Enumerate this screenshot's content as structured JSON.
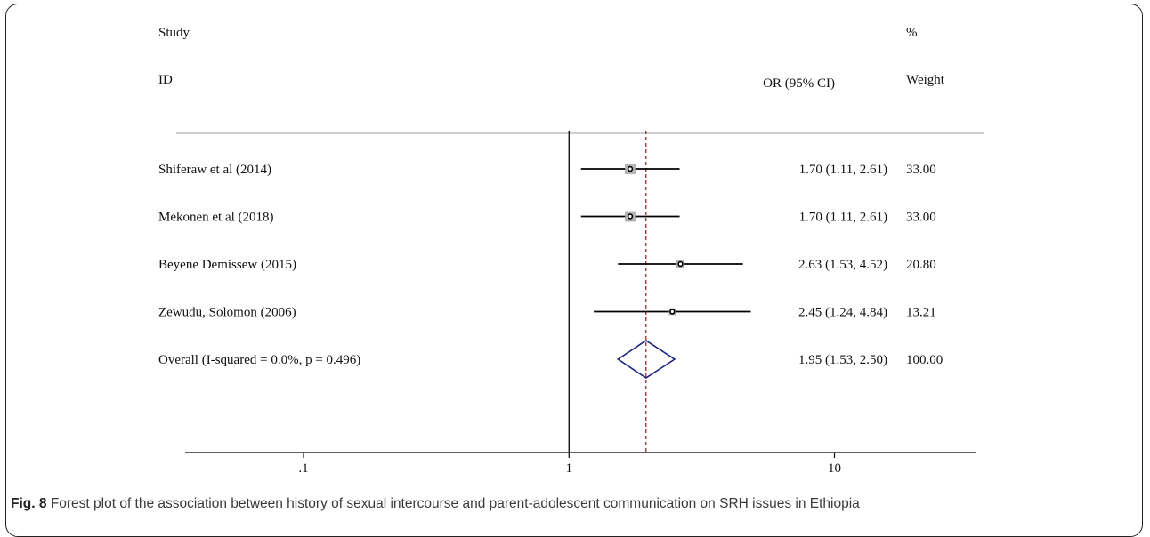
{
  "chart_data": {
    "type": "forest",
    "headers": {
      "study_top": "Study",
      "study_bottom": "ID",
      "effect": "OR (95% CI)",
      "weight_top": "%",
      "weight_bottom": "Weight"
    },
    "x_scale": "log",
    "xlim": [
      0.0358,
      34
    ],
    "x_ticks": [
      {
        "value": 0.1,
        "label": ".1"
      },
      {
        "value": 1,
        "label": "1"
      },
      {
        "value": 10,
        "label": "10"
      }
    ],
    "null_line": 1,
    "pooled_line": 1.95,
    "studies": [
      {
        "label": "Shiferaw et al (2014)",
        "or": 1.7,
        "lo": 1.11,
        "hi": 2.61,
        "ci_text": "1.70 (1.11, 2.61)",
        "weight": "33.00"
      },
      {
        "label": "Mekonen et al (2018)",
        "or": 1.7,
        "lo": 1.11,
        "hi": 2.61,
        "ci_text": "1.70 (1.11, 2.61)",
        "weight": "33.00"
      },
      {
        "label": "Beyene Demissew (2015)",
        "or": 2.63,
        "lo": 1.53,
        "hi": 4.52,
        "ci_text": "2.63 (1.53, 4.52)",
        "weight": "20.80"
      },
      {
        "label": "Zewudu, Solomon (2006)",
        "or": 2.45,
        "lo": 1.24,
        "hi": 4.84,
        "ci_text": "2.45 (1.24, 4.84)",
        "weight": "13.21"
      }
    ],
    "overall": {
      "label": "Overall  (I-squared = 0.0%, p = 0.496)",
      "or": 1.95,
      "lo": 1.53,
      "hi": 2.5,
      "ci_text": "1.95 (1.53, 2.50)",
      "weight": "100.00"
    },
    "colors": {
      "text": "#111111",
      "line": "#000000",
      "marker_box": "#b5b5b5",
      "diamond": "#1a237e",
      "pooled_line": "#8b1a1a"
    }
  },
  "caption": {
    "label": "Fig. 8",
    "text": "Forest plot of the association between history of sexual intercourse and parent-adolescent communication on SRH issues in Ethiopia"
  }
}
